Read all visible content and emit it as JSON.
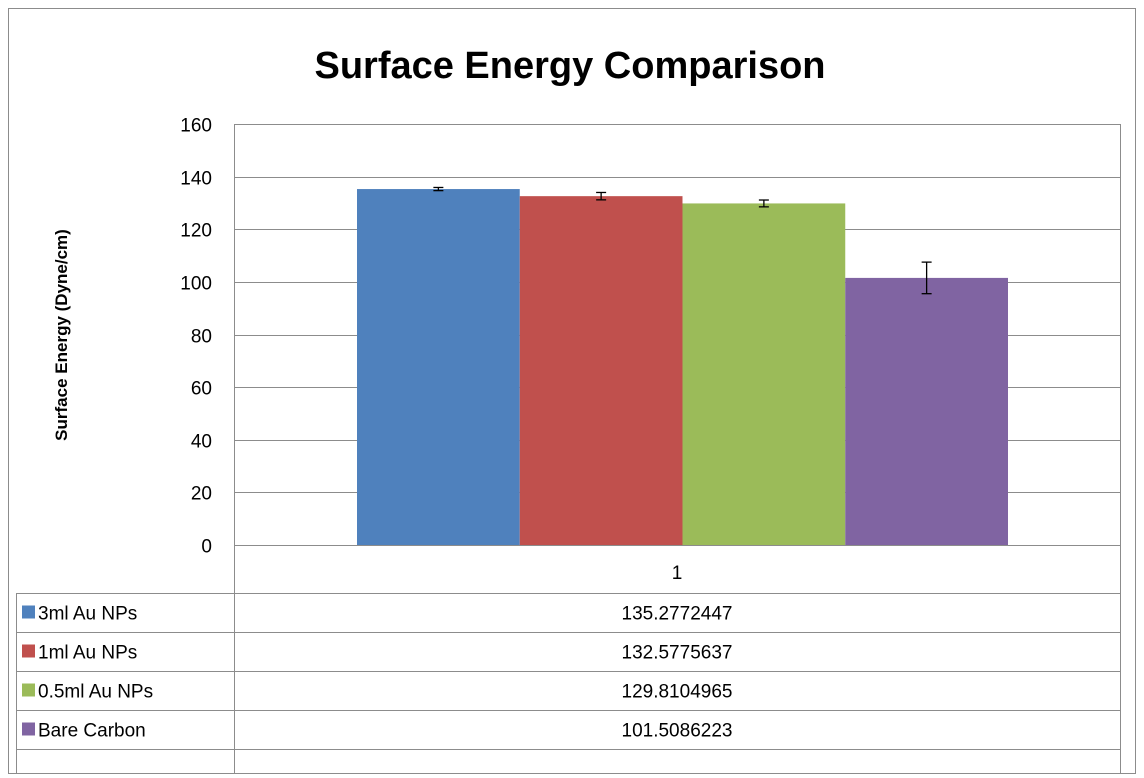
{
  "chart_data": {
    "type": "bar",
    "title": "Surface Energy Comparison",
    "ylabel": "Surface Energy (Dyne/cm)",
    "xlabel": "",
    "categories": [
      "1"
    ],
    "ylim": [
      0,
      160
    ],
    "yticks": [
      0,
      20,
      40,
      60,
      80,
      100,
      120,
      140,
      160
    ],
    "grid": true,
    "legend": "data-table-below",
    "series": [
      {
        "name": "3ml Au NPs",
        "values": [
          135.2772447
        ],
        "value_label": "135.2772447",
        "error": [
          0.6
        ],
        "color": "#4f81bd"
      },
      {
        "name": "1ml Au NPs",
        "values": [
          132.5775637
        ],
        "value_label": "132.5775637",
        "error": [
          1.4
        ],
        "color": "#c0504d"
      },
      {
        "name": "0.5ml Au NPs",
        "values": [
          129.8104965
        ],
        "value_label": "129.8104965",
        "error": [
          1.3
        ],
        "color": "#9bbb59"
      },
      {
        "name": "Bare Carbon",
        "values": [
          101.5086223
        ],
        "value_label": "101.5086223",
        "error": [
          6.0
        ],
        "color": "#8064a2"
      }
    ]
  }
}
